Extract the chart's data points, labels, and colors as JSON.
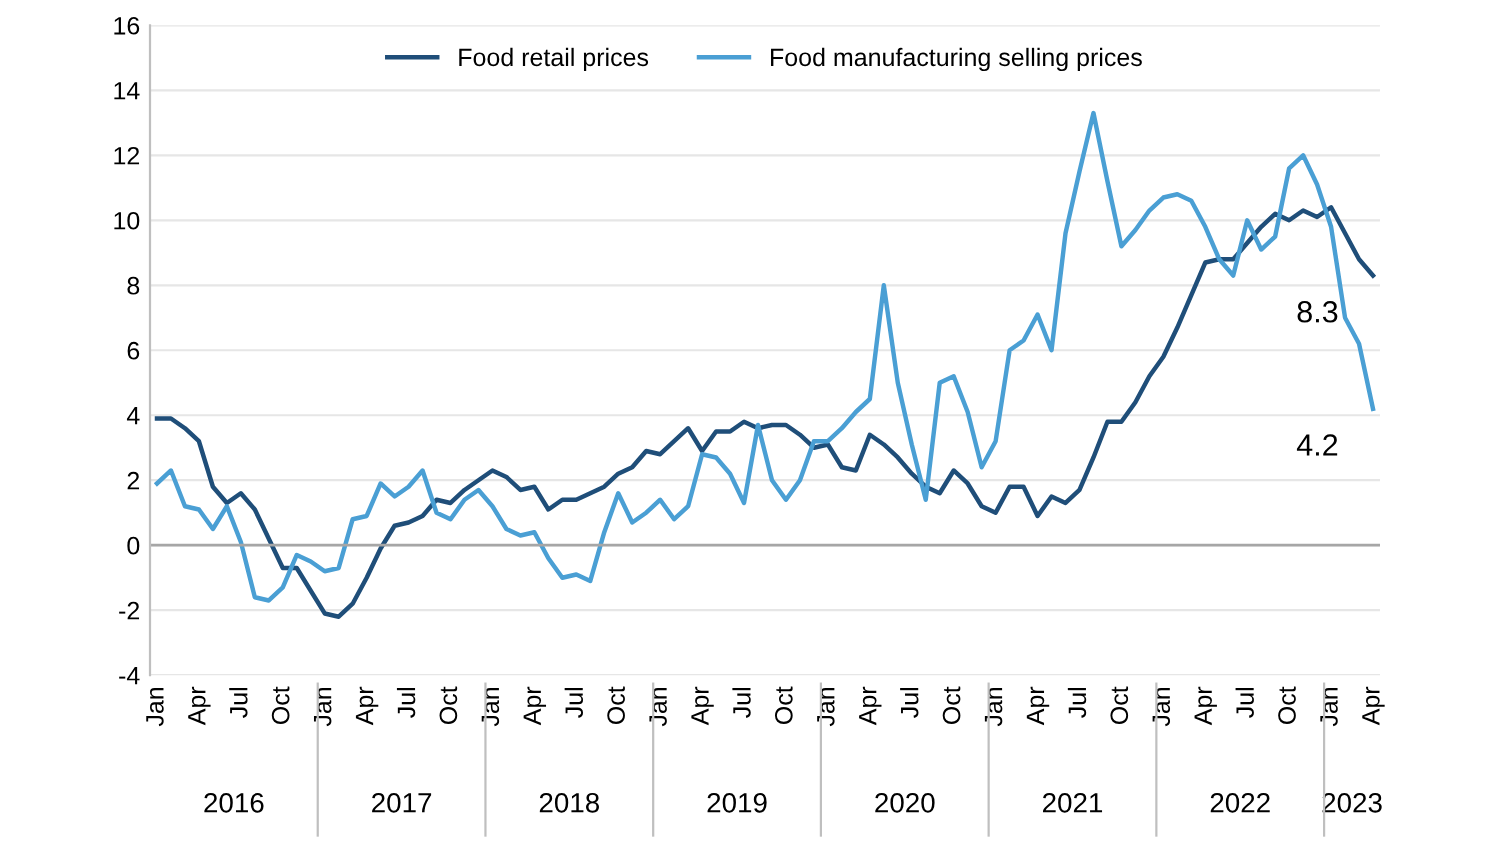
{
  "chart_data": {
    "type": "line",
    "categories": [
      "Jan",
      null,
      null,
      "Apr",
      null,
      null,
      "Jul",
      null,
      null,
      "Oct",
      null,
      null,
      "Jan",
      null,
      null,
      "Apr",
      null,
      null,
      "Jul",
      null,
      null,
      "Oct",
      null,
      null,
      "Jan",
      null,
      null,
      "Apr",
      null,
      null,
      "Jul",
      null,
      null,
      "Oct",
      null,
      null,
      "Jan",
      null,
      null,
      "Apr",
      null,
      null,
      "Jul",
      null,
      null,
      "Oct",
      null,
      null,
      "Jan",
      null,
      null,
      "Apr",
      null,
      null,
      "Jul",
      null,
      null,
      "Oct",
      null,
      null,
      "Jan",
      null,
      null,
      "Apr",
      null,
      null,
      "Jul",
      null,
      null,
      "Oct",
      null,
      null,
      "Jan",
      null,
      null,
      "Apr",
      null,
      null,
      "Jul",
      null,
      null,
      "Oct",
      null,
      null,
      "Jan",
      null,
      null,
      "Apr"
    ],
    "series": [
      {
        "name": "Food retail prices",
        "color": "#1f4e79",
        "values": [
          3.9,
          3.9,
          3.6,
          3.2,
          1.8,
          1.3,
          1.6,
          1.1,
          0.2,
          -0.7,
          -0.7,
          -1.4,
          -2.1,
          -2.2,
          -1.8,
          -1.0,
          -0.1,
          0.6,
          0.7,
          0.9,
          1.4,
          1.3,
          1.7,
          2.0,
          2.3,
          2.1,
          1.7,
          1.8,
          1.1,
          1.4,
          1.4,
          1.6,
          1.8,
          2.2,
          2.4,
          2.9,
          2.8,
          3.2,
          3.6,
          2.9,
          3.5,
          3.5,
          3.8,
          3.6,
          3.7,
          3.7,
          3.4,
          3.0,
          3.1,
          2.4,
          2.3,
          3.4,
          3.1,
          2.7,
          2.2,
          1.8,
          1.6,
          2.3,
          1.9,
          1.2,
          1.0,
          1.8,
          1.8,
          0.9,
          1.5,
          1.3,
          1.7,
          2.7,
          3.8,
          3.8,
          4.4,
          5.2,
          5.8,
          6.7,
          7.7,
          8.7,
          8.8,
          8.8,
          9.3,
          9.8,
          10.2,
          10.0,
          10.3,
          10.1,
          10.4,
          9.6,
          8.8,
          8.3
        ],
        "value_labels": [
          null,
          null,
          null,
          null,
          null,
          null,
          null,
          null,
          null,
          null,
          null,
          null,
          null,
          null,
          null,
          null,
          null,
          null,
          null,
          null,
          null,
          null,
          null,
          null,
          null,
          null,
          null,
          null,
          null,
          null,
          null,
          null,
          null,
          null,
          null,
          null,
          null,
          null,
          null,
          null,
          null,
          null,
          null,
          null,
          null,
          null,
          null,
          null,
          null,
          null,
          null,
          null,
          null,
          null,
          null,
          null,
          null,
          null,
          null,
          null,
          null,
          null,
          null,
          null,
          null,
          null,
          null,
          null,
          null,
          null,
          null,
          null,
          null,
          null,
          null,
          null,
          null,
          null,
          null,
          null,
          null,
          null,
          null,
          null,
          null,
          null,
          null,
          "8.3"
        ]
      },
      {
        "name": "Food manufacturing selling prices",
        "color": "#4a9fd4",
        "values": [
          1.9,
          2.3,
          1.2,
          1.1,
          0.5,
          1.2,
          0.1,
          -1.6,
          -1.7,
          -1.3,
          -0.3,
          -0.5,
          -0.8,
          -0.7,
          0.8,
          0.9,
          1.9,
          1.5,
          1.8,
          2.3,
          1.0,
          0.8,
          1.4,
          1.7,
          1.2,
          0.5,
          0.3,
          0.4,
          -0.4,
          -1.0,
          -0.9,
          -1.1,
          0.4,
          1.6,
          0.7,
          1.0,
          1.4,
          0.8,
          1.2,
          2.8,
          2.7,
          2.2,
          1.3,
          3.7,
          2.0,
          1.4,
          2.0,
          3.2,
          3.2,
          3.6,
          4.1,
          4.5,
          8.0,
          5.0,
          3.1,
          1.4,
          5.0,
          5.2,
          4.1,
          2.4,
          3.2,
          6.0,
          6.3,
          7.1,
          6.0,
          9.6,
          11.5,
          13.3,
          11.2,
          9.2,
          9.7,
          10.3,
          10.7,
          10.8,
          10.6,
          9.8,
          8.8,
          8.3,
          10.0,
          9.1,
          9.5,
          11.6,
          12.0,
          11.1,
          9.8,
          7.0,
          6.2,
          4.2
        ],
        "value_labels": [
          null,
          null,
          null,
          null,
          null,
          null,
          null,
          null,
          null,
          null,
          null,
          null,
          null,
          null,
          null,
          null,
          null,
          null,
          null,
          null,
          null,
          null,
          null,
          null,
          null,
          null,
          null,
          null,
          null,
          null,
          null,
          null,
          null,
          null,
          null,
          null,
          null,
          null,
          null,
          null,
          null,
          null,
          null,
          null,
          null,
          null,
          null,
          null,
          null,
          null,
          null,
          null,
          null,
          null,
          null,
          null,
          null,
          null,
          null,
          null,
          null,
          null,
          null,
          null,
          null,
          null,
          null,
          null,
          null,
          null,
          null,
          null,
          null,
          null,
          null,
          null,
          null,
          null,
          null,
          null,
          null,
          null,
          null,
          null,
          null,
          null,
          null,
          "4.2"
        ]
      }
    ],
    "ylim": [
      -4,
      16
    ],
    "yticks": [
      -4,
      -2,
      0,
      2,
      4,
      6,
      8,
      10,
      12,
      14,
      16
    ],
    "grid": "y",
    "legend": "top",
    "annotations": [
      "2016",
      "2017",
      "2018",
      "2019",
      "2020",
      "2021",
      "2022",
      "2023"
    ]
  }
}
